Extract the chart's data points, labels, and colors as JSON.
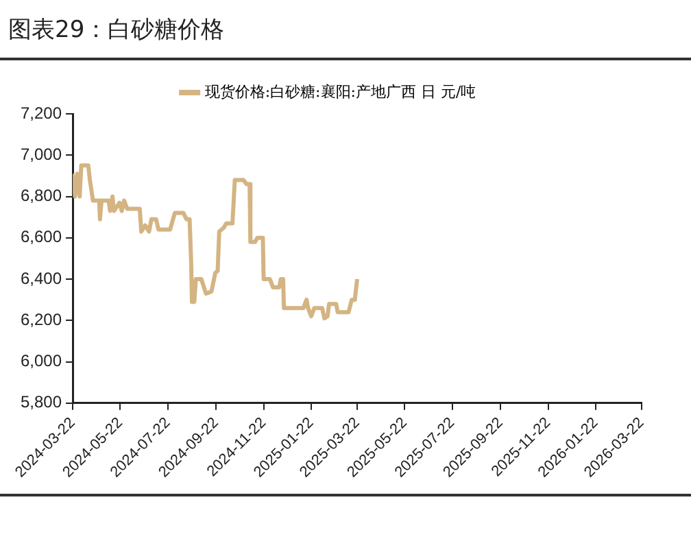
{
  "chart_data": {
    "type": "line",
    "title": "图表29：白砂糖价格",
    "legend": "top",
    "grid": false,
    "marker": "none",
    "line_style": "solid",
    "xlim": [
      "2024-03-22",
      "2026-03-22"
    ],
    "xticks": [
      "2024-03-22",
      "2024-05-22",
      "2024-07-22",
      "2024-09-22",
      "2024-11-22",
      "2025-01-22",
      "2025-03-22",
      "2025-05-22",
      "2025-07-22",
      "2025-09-22",
      "2025-11-22",
      "2026-01-22",
      "2026-03-22"
    ],
    "ylim": [
      5800,
      7200
    ],
    "yticks": [
      {
        "value": 5800,
        "label": "5,800"
      },
      {
        "value": 6000,
        "label": "6,000"
      },
      {
        "value": 6200,
        "label": "6,200"
      },
      {
        "value": 6400,
        "label": "6,400"
      },
      {
        "value": 6600,
        "label": "6,600"
      },
      {
        "value": 6800,
        "label": "6,800"
      },
      {
        "value": 7000,
        "label": "7,000"
      },
      {
        "value": 7200,
        "label": "7,200"
      }
    ],
    "series": [
      {
        "name": "现货价格:白砂糖:襄阳:产地广西 日 元/吨",
        "color": "#d4b483",
        "x": [
          "2024-03-22",
          "2024-03-25",
          "2024-03-28",
          "2024-03-31",
          "2024-04-02",
          "2024-04-11",
          "2024-04-13",
          "2024-04-17",
          "2024-04-25",
          "2024-04-26",
          "2024-04-28",
          "2024-05-07",
          "2024-05-09",
          "2024-05-12",
          "2024-05-14",
          "2024-05-21",
          "2024-05-24",
          "2024-05-27",
          "2024-05-31",
          "2024-06-16",
          "2024-06-18",
          "2024-06-23",
          "2024-06-28",
          "2024-07-01",
          "2024-07-07",
          "2024-07-10",
          "2024-07-25",
          "2024-07-31",
          "2024-08-11",
          "2024-08-15",
          "2024-08-19",
          "2024-08-21",
          "2024-08-22",
          "2024-08-25",
          "2024-08-27",
          "2024-09-03",
          "2024-09-09",
          "2024-09-16",
          "2024-09-21",
          "2024-09-24",
          "2024-09-26",
          "2024-10-02",
          "2024-10-05",
          "2024-10-13",
          "2024-10-16",
          "2024-10-27",
          "2024-10-31",
          "2024-11-04",
          "2024-11-05",
          "2024-11-11",
          "2024-11-14",
          "2024-11-21",
          "2024-11-22",
          "2024-11-30",
          "2024-12-04",
          "2024-12-12",
          "2024-12-14",
          "2024-12-17",
          "2024-12-18",
          "2025-01-12",
          "2025-01-16",
          "2025-01-18",
          "2025-01-22",
          "2025-01-26",
          "2025-02-05",
          "2025-02-08",
          "2025-02-12",
          "2025-02-14",
          "2025-02-23",
          "2025-02-25",
          "2025-03-11",
          "2025-03-15",
          "2025-03-19",
          "2025-03-22"
        ],
        "values": [
          6910,
          6800,
          6910,
          6800,
          6950,
          6950,
          6880,
          6780,
          6780,
          6690,
          6780,
          6780,
          6730,
          6800,
          6730,
          6770,
          6730,
          6780,
          6740,
          6740,
          6630,
          6660,
          6630,
          6690,
          6690,
          6640,
          6640,
          6720,
          6720,
          6690,
          6690,
          6480,
          6290,
          6290,
          6400,
          6400,
          6330,
          6340,
          6430,
          6440,
          6630,
          6650,
          6670,
          6670,
          6880,
          6880,
          6860,
          6860,
          6580,
          6580,
          6600,
          6600,
          6400,
          6400,
          6360,
          6360,
          6400,
          6400,
          6260,
          6260,
          6300,
          6260,
          6220,
          6260,
          6260,
          6210,
          6220,
          6280,
          6280,
          6240,
          6240,
          6300,
          6300,
          6400
        ]
      }
    ]
  }
}
